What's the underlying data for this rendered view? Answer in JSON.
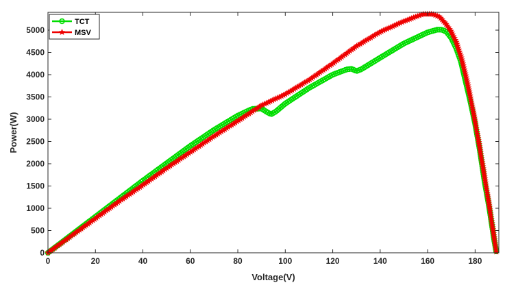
{
  "chart_data": {
    "type": "line",
    "title": "",
    "xlabel": "Voltage(V)",
    "ylabel": "Power(W)",
    "xlim": [
      0,
      190
    ],
    "ylim": [
      0,
      5400
    ],
    "xticks": [
      0,
      20,
      40,
      60,
      80,
      100,
      120,
      140,
      160,
      180
    ],
    "yticks": [
      0,
      500,
      1000,
      1500,
      2000,
      2500,
      3000,
      3500,
      4000,
      4500,
      5000
    ],
    "grid": false,
    "legend_position": "top-left",
    "series": [
      {
        "name": "TCT",
        "color": "#00dd00",
        "marker": "circle",
        "points": [
          [
            0,
            0
          ],
          [
            10,
            405
          ],
          [
            20,
            810
          ],
          [
            30,
            1215
          ],
          [
            40,
            1620
          ],
          [
            50,
            2010
          ],
          [
            60,
            2400
          ],
          [
            70,
            2760
          ],
          [
            80,
            3080
          ],
          [
            86,
            3230
          ],
          [
            90,
            3240
          ],
          [
            92,
            3170
          ],
          [
            94,
            3110
          ],
          [
            96,
            3170
          ],
          [
            100,
            3350
          ],
          [
            110,
            3700
          ],
          [
            120,
            4000
          ],
          [
            126,
            4120
          ],
          [
            128,
            4130
          ],
          [
            130,
            4080
          ],
          [
            132,
            4120
          ],
          [
            140,
            4380
          ],
          [
            150,
            4700
          ],
          [
            160,
            4950
          ],
          [
            164,
            5010
          ],
          [
            166,
            5010
          ],
          [
            168,
            4960
          ],
          [
            170,
            4820
          ],
          [
            172,
            4600
          ],
          [
            174,
            4300
          ],
          [
            176,
            3850
          ],
          [
            178,
            3400
          ],
          [
            180,
            2900
          ],
          [
            182,
            2300
          ],
          [
            184,
            1600
          ],
          [
            186,
            1000
          ],
          [
            187,
            650
          ],
          [
            188,
            300
          ],
          [
            189,
            0
          ]
        ]
      },
      {
        "name": "MSV",
        "color": "#ee0000",
        "marker": "star",
        "points": [
          [
            0,
            0
          ],
          [
            10,
            385
          ],
          [
            20,
            770
          ],
          [
            30,
            1155
          ],
          [
            40,
            1520
          ],
          [
            50,
            1900
          ],
          [
            60,
            2260
          ],
          [
            70,
            2620
          ],
          [
            80,
            2960
          ],
          [
            90,
            3310
          ],
          [
            100,
            3560
          ],
          [
            110,
            3880
          ],
          [
            120,
            4250
          ],
          [
            130,
            4640
          ],
          [
            140,
            4960
          ],
          [
            150,
            5200
          ],
          [
            155,
            5300
          ],
          [
            158,
            5360
          ],
          [
            162,
            5360
          ],
          [
            165,
            5300
          ],
          [
            168,
            5120
          ],
          [
            170,
            4960
          ],
          [
            172,
            4740
          ],
          [
            174,
            4420
          ],
          [
            176,
            4000
          ],
          [
            178,
            3500
          ],
          [
            180,
            2950
          ],
          [
            182,
            2350
          ],
          [
            184,
            1700
          ],
          [
            186,
            1050
          ],
          [
            187,
            700
          ],
          [
            188,
            350
          ],
          [
            189,
            0
          ]
        ]
      }
    ]
  }
}
